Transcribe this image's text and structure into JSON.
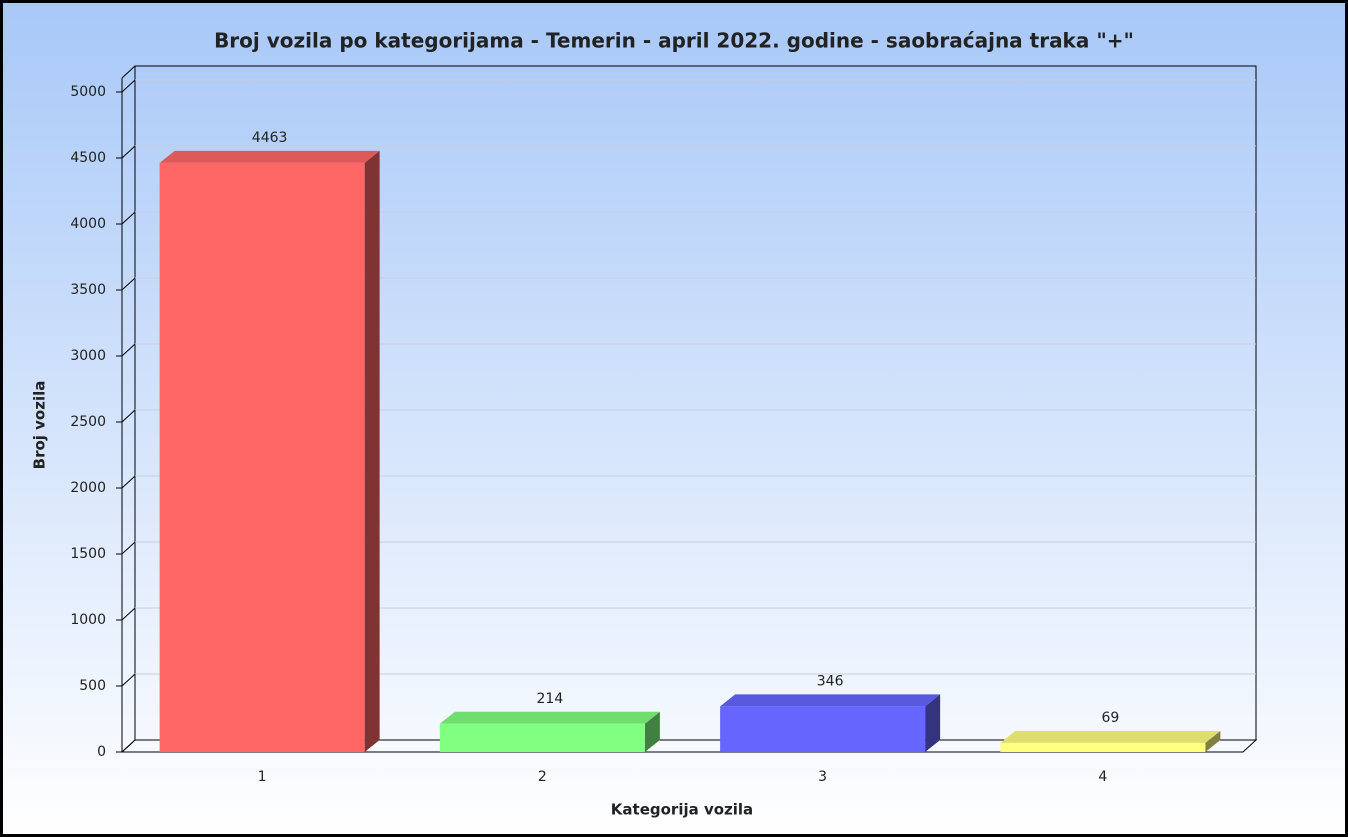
{
  "chart_data": {
    "type": "bar3d",
    "title": "Broj vozila po kategorijama - Temerin - april 2022. godine - saobraćajna traka \"+\"",
    "x_label": "Kategorija vozila",
    "y_label": "Broj vozila",
    "categories": [
      "1",
      "2",
      "3",
      "4"
    ],
    "values": [
      4463,
      214,
      346,
      69
    ],
    "colors": [
      "#ff6666",
      "#80ff80",
      "#6666ff",
      "#ffff80"
    ],
    "ylim": [
      0,
      5000
    ],
    "yticks": [
      0,
      500,
      1000,
      1500,
      2000,
      2500,
      3000,
      3500,
      4000,
      4500,
      5000
    ],
    "grid": true
  }
}
